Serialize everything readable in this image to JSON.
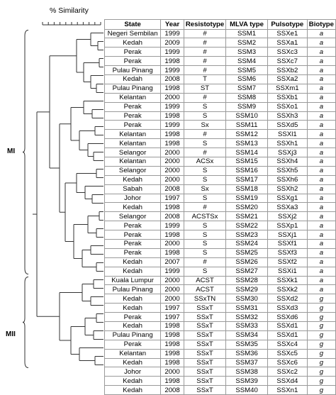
{
  "figure": {
    "axis_title": "% Similarity",
    "clusters": [
      "MI",
      "MII"
    ]
  },
  "table": {
    "headers": [
      "State",
      "Year",
      "Resistotype",
      "MLVA type",
      "Pulsotype",
      "Biotype"
    ],
    "rows": [
      [
        "Negeri Sembilan",
        "1999",
        "#",
        "SSM1",
        "SSXe1",
        "a"
      ],
      [
        "Kedah",
        "2009",
        "#",
        "SSM2",
        "SSXa1",
        "a"
      ],
      [
        "Perak",
        "1999",
        "#",
        "SSM3",
        "SSXc3",
        "a"
      ],
      [
        "Perak",
        "1998",
        "#",
        "SSM4",
        "SSXc7",
        "a"
      ],
      [
        "Pulau Pinang",
        "1999",
        "#",
        "SSM5",
        "SSXb2",
        "a"
      ],
      [
        "Kedah",
        "2008",
        "T",
        "SSM6",
        "SSXa2",
        "a"
      ],
      [
        "Pulau Pinang",
        "1998",
        "ST",
        "SSM7",
        "SSXm1",
        "a"
      ],
      [
        "Kelantan",
        "2000",
        "#",
        "SSM8",
        "SSXb1",
        "a"
      ],
      [
        "Perak",
        "1999",
        "S",
        "SSM9",
        "SSXo1",
        "a"
      ],
      [
        "Perak",
        "1998",
        "S",
        "SSM10",
        "SSXh3",
        "a"
      ],
      [
        "Perak",
        "1999",
        "Sx",
        "SSM11",
        "SSXd5",
        "a"
      ],
      [
        "Kelantan",
        "1998",
        "#",
        "SSM12",
        "SSXl1",
        "a"
      ],
      [
        "Kelantan",
        "1998",
        "S",
        "SSM13",
        "SSXh1",
        "a"
      ],
      [
        "Selangor",
        "2000",
        "#",
        "SSM14",
        "SSXj3",
        "a"
      ],
      [
        "Kelantan",
        "2000",
        "ACSx",
        "SSM15",
        "SSXh4",
        "a"
      ],
      [
        "Selangor",
        "2000",
        "S",
        "SSM16",
        "SSXh5",
        "a"
      ],
      [
        "Kedah",
        "2000",
        "S",
        "SSM17",
        "SSXh6",
        "a"
      ],
      [
        "Sabah",
        "2008",
        "Sx",
        "SSM18",
        "SSXh2",
        "a"
      ],
      [
        "Johor",
        "1997",
        "S",
        "SSM19",
        "SSXg1",
        "a"
      ],
      [
        "Kedah",
        "1998",
        "#",
        "SSM20",
        "SSXa3",
        "a"
      ],
      [
        "Selangor",
        "2008",
        "ACSTSx",
        "SSM21",
        "SSXj2",
        "a"
      ],
      [
        "Perak",
        "1999",
        "S",
        "SSM22",
        "SSXp1",
        "a"
      ],
      [
        "Perak",
        "1998",
        "S",
        "SSM23",
        "SSXj1",
        "a"
      ],
      [
        "Perak",
        "2000",
        "S",
        "SSM24",
        "SSXf1",
        "a"
      ],
      [
        "Perak",
        "1998",
        "S",
        "SSM25",
        "SSXf3",
        "a"
      ],
      [
        "Kedah",
        "2007",
        "#",
        "SSM26",
        "SSXf2",
        "a"
      ],
      [
        "Kedah",
        "1999",
        "S",
        "SSM27",
        "SSXi1",
        "a"
      ],
      [
        "Kuala Lumpur",
        "2000",
        "ACST",
        "SSM28",
        "SSXk1",
        "a"
      ],
      [
        "Pulau Pinang",
        "2000",
        "ACST",
        "SSM29",
        "SSXk2",
        "a"
      ],
      [
        "Kedah",
        "2000",
        "SSxTN",
        "SSM30",
        "SSXd2",
        "g"
      ],
      [
        "Kedah",
        "1997",
        "SSxT",
        "SSM31",
        "SSXd3",
        "g"
      ],
      [
        "Perak",
        "1997",
        "SSxT",
        "SSM32",
        "SSXd6",
        "g"
      ],
      [
        "Kedah",
        "1998",
        "SSxT",
        "SSM33",
        "SSXd1",
        "g"
      ],
      [
        "Pulau Pinang",
        "1998",
        "SSxT",
        "SSM34",
        "SSXd1",
        "g"
      ],
      [
        "Perak",
        "1998",
        "SSxT",
        "SSM35",
        "SSXc4",
        "g"
      ],
      [
        "Kelantan",
        "1998",
        "SSxT",
        "SSM36",
        "SSXc5",
        "g"
      ],
      [
        "Kedah",
        "1998",
        "SSxT",
        "SSM37",
        "SSXc6",
        "g"
      ],
      [
        "Johor",
        "2000",
        "SSxT",
        "SSM38",
        "SSXc2",
        "g"
      ],
      [
        "Kedah",
        "1998",
        "SSxT",
        "SSM39",
        "SSXd4",
        "g"
      ],
      [
        "Kedah",
        "2008",
        "SSxT",
        "SSM40",
        "SSXn1",
        "g"
      ]
    ]
  }
}
